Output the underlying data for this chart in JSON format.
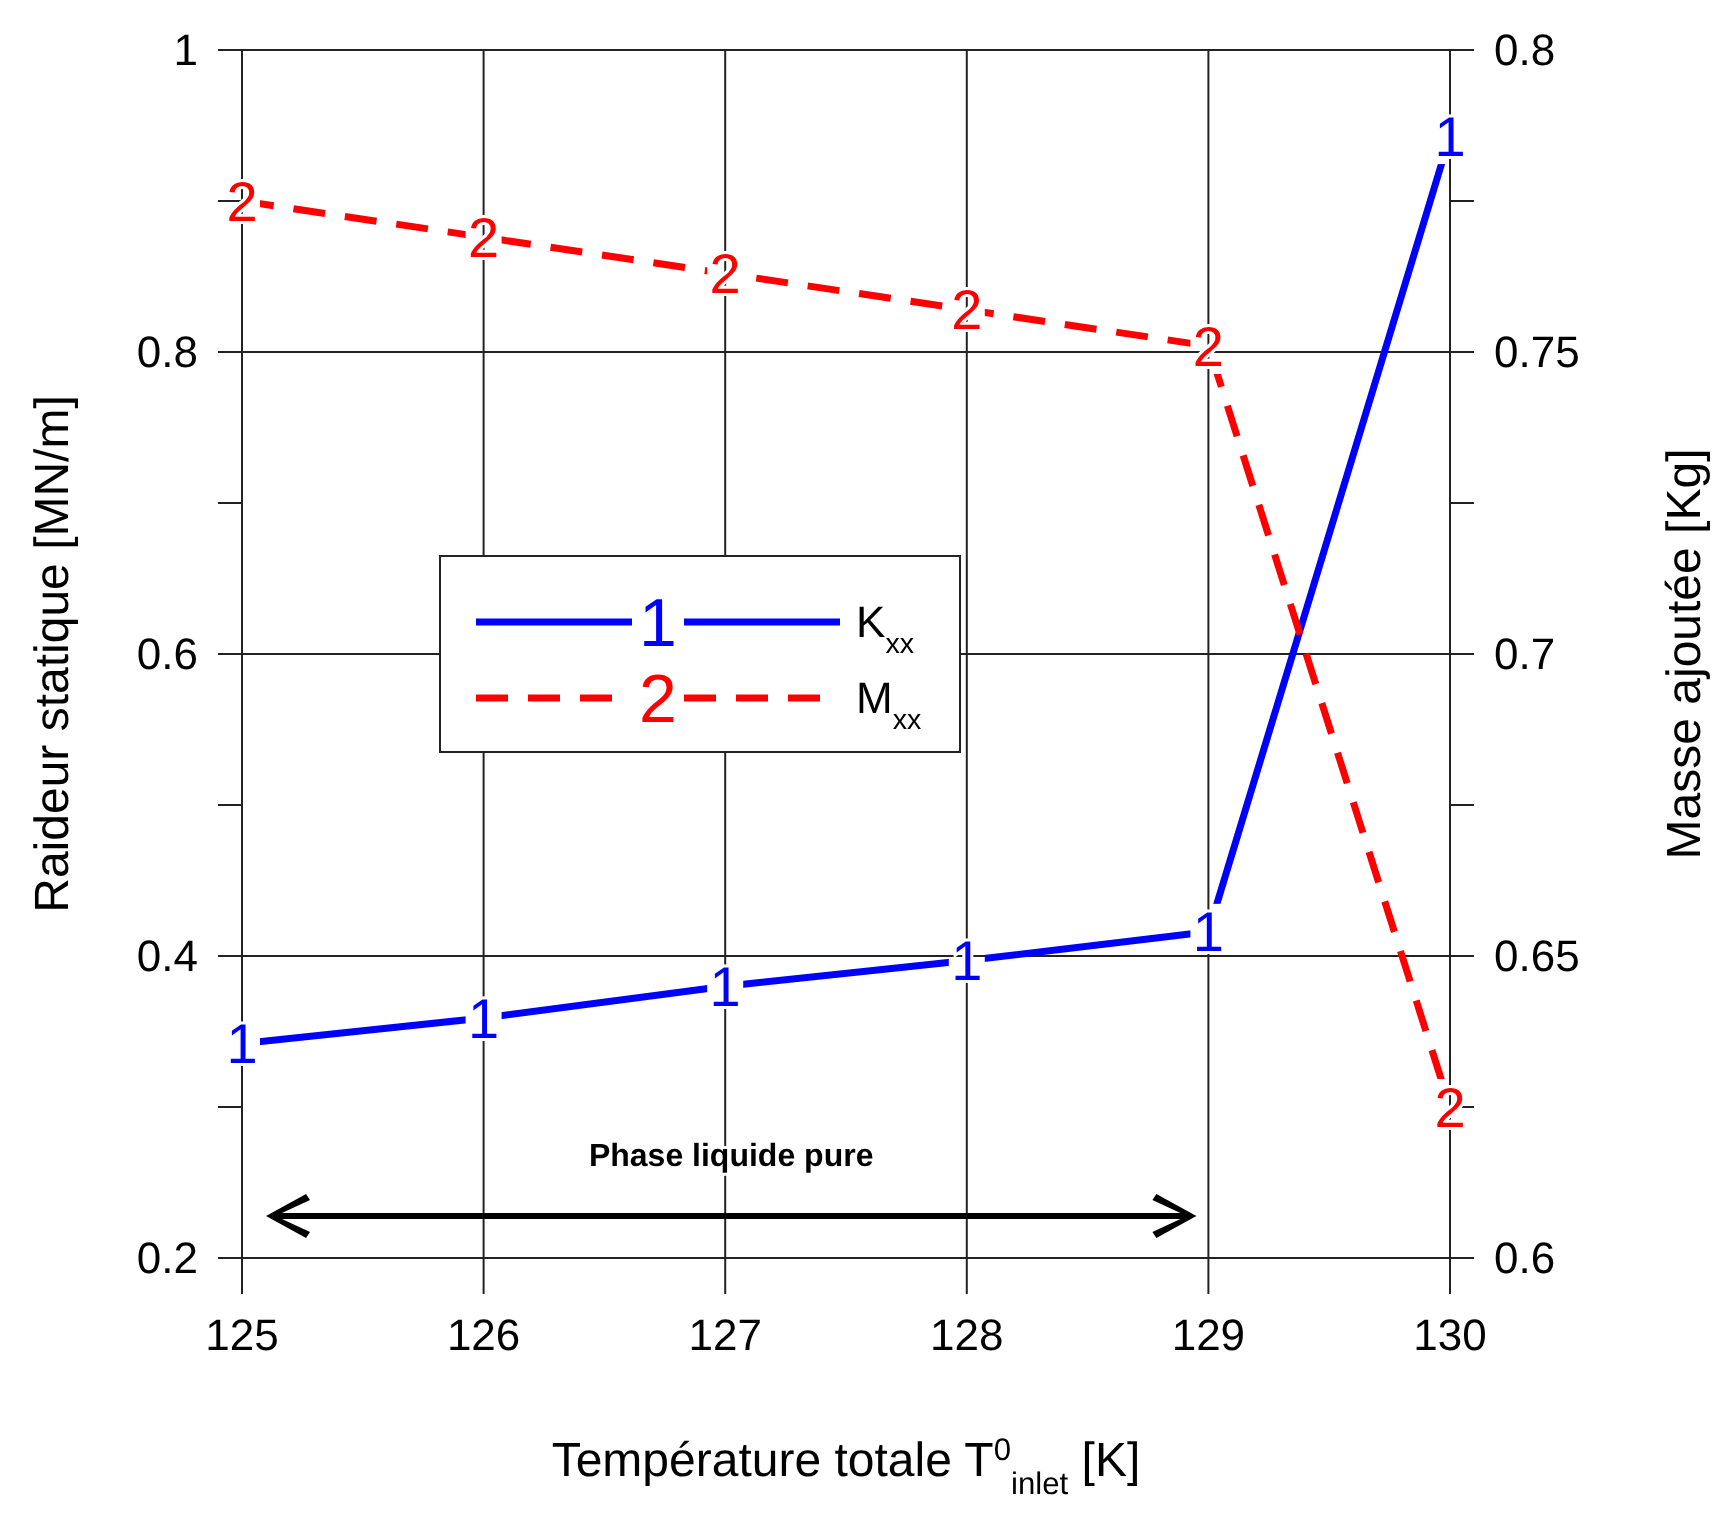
{
  "chart_data": {
    "type": "line",
    "xlabel": "Température totale T$^{0}$$_{inlet}$ [K]",
    "ylabel": "Raideur statique [MN/m]",
    "y2label": "Masse ajoutée [Kg]",
    "x": [
      125,
      126,
      127,
      128,
      129,
      130
    ],
    "xlim": [
      125,
      130
    ],
    "xticks": [
      125,
      126,
      127,
      128,
      129,
      130
    ],
    "ylim": [
      0.2,
      1
    ],
    "yticks": [
      0.2,
      {
        "value": 0.3,
        "label": null
      },
      0.4,
      {
        "value": 0.5,
        "label": null
      },
      0.6,
      {
        "value": 0.7,
        "label": null
      },
      0.8,
      {
        "value": 0.9,
        "label": null
      },
      1
    ],
    "y2lim": [
      0.6,
      0.8
    ],
    "y2ticks": [
      0.6,
      {
        "value": 0.625,
        "label": null
      },
      0.65,
      {
        "value": 0.675,
        "label": null
      },
      0.7,
      {
        "value": 0.725,
        "label": null
      },
      0.75,
      {
        "value": 0.775,
        "label": null
      },
      0.8
    ],
    "grid": true,
    "legend": "left",
    "series": [
      {
        "name": "K$_{xx}$",
        "color": "#0000ff",
        "line_style": "solid",
        "values": [
          0.342,
          0.359,
          0.38,
          0.397,
          0.416,
          0.943
        ]
      },
      {
        "name": "M$_{xx}$",
        "color": "#ff0000",
        "line_style": "dashed",
        "axis": "y2",
        "values": [
          0.775,
          0.769,
          0.763,
          0.757,
          0.751,
          0.625
        ]
      }
    ],
    "annotations": [
      "1",
      "2",
      "Phase liquide pure"
    ]
  }
}
